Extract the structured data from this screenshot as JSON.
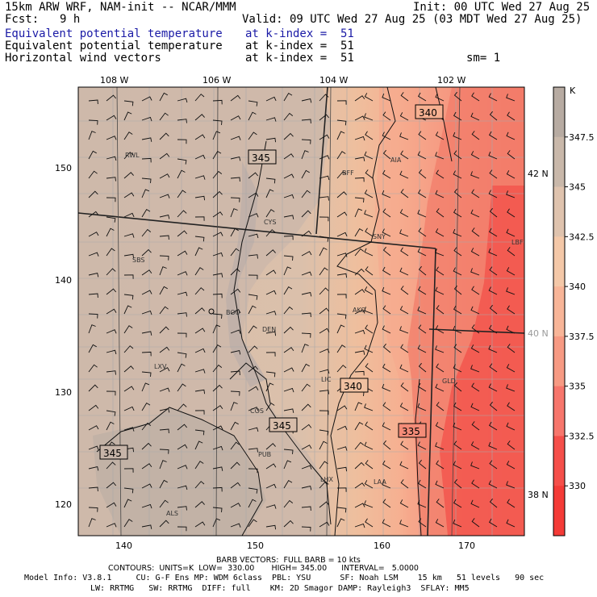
{
  "header": {
    "model_line": "15km ARW WRF, NAM-init -- NCAR/MMM",
    "init": "Init: 00 UTC Wed 27 Aug 25",
    "fcst_label": "Fcst:",
    "fcst_value": "9 h",
    "valid": "Valid: 09 UTC Wed 27 Aug 25 (03 MDT Wed 27 Aug 25)",
    "fields": [
      {
        "name": "Equivalent potential temperature",
        "level": "at k-index =  51",
        "extra": ""
      },
      {
        "name": "Equivalent potential temperature",
        "level": "at k-index =  51",
        "extra": ""
      },
      {
        "name": "Horizontal wind vectors",
        "level": "at k-index =  51",
        "extra": "sm= 1"
      }
    ]
  },
  "map": {
    "top_lon_labels": [
      "108 W",
      "106 W",
      "104 W",
      "102 W"
    ],
    "bottom_x_labels": [
      "140",
      "150",
      "160",
      "170"
    ],
    "left_y_labels": [
      "150",
      "140",
      "130",
      "120"
    ],
    "right_lat_labels": [
      "42 N",
      "40 N",
      "38 N"
    ],
    "cities": [
      "RWL",
      "BFF",
      "AIA",
      "CYS",
      "SNY",
      "SBS",
      "BOU",
      "AKO",
      "DEN",
      "LXV",
      "LIC",
      "GLD",
      "COS",
      "PUB",
      "LHX",
      "LAA",
      "ALS",
      "LBF"
    ],
    "contour_labels": [
      "340",
      "345",
      "345",
      "340",
      "345",
      "335"
    ]
  },
  "colorbar": {
    "unit": "K",
    "labels": [
      "347.5",
      "345",
      "342.5",
      "340",
      "337.5",
      "335",
      "332.5",
      "330"
    ],
    "colors": [
      "#b7aba2",
      "#c9b8aa",
      "#dfc3ae",
      "#f4c8a8",
      "#f8b598",
      "#f79a83",
      "#f7766c",
      "#f54f4a",
      "#f43b37"
    ]
  },
  "footer": {
    "barb_line": "BARB VECTORS:  FULL BARB = 10 kts",
    "contours_line": "CONTOURS:  UNITS=K  LOW=  330.00       HIGH= 345.00      INTERVAL=   5.0000",
    "model_info_1": "Model Info: V3.8.1     CU: G-F Ens MP: WDM 6class  PBL: YSU      SF: Noah LSM    15 km   51 levels   90 sec",
    "model_info_2": "LW: RRTMG   SW: RRTMG  DIFF: full    KM: 2D Smagor DAMP: Rayleigh3  SFLAY: MM5"
  }
}
